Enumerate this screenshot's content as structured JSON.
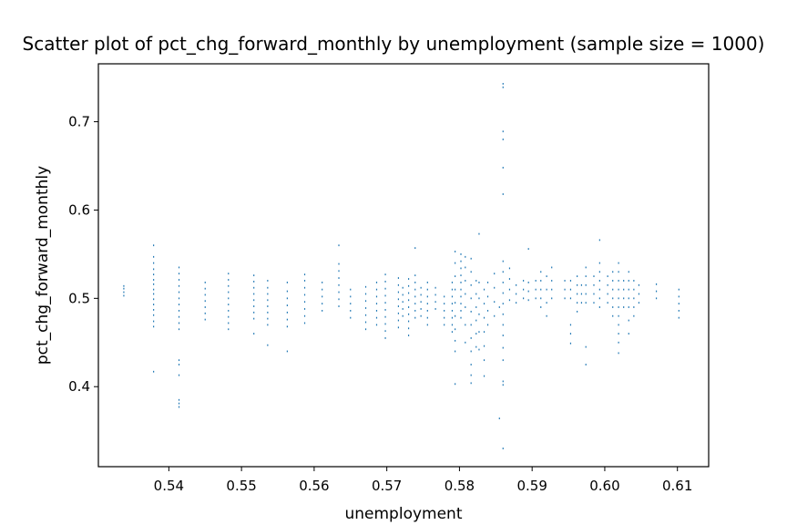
{
  "chart_data": {
    "type": "scatter",
    "title": "Scatter plot of pct_chg_forward_monthly by unemployment (sample size = 1000)",
    "xlabel": "unemployment",
    "ylabel": "pct_chg_forward_monthly",
    "xlim": [
      0.5303,
      0.6143
    ],
    "ylim": [
      0.3094,
      0.7656
    ],
    "x_ticks": [
      0.54,
      0.55,
      0.56,
      0.57,
      0.58,
      0.59,
      0.6,
      0.61
    ],
    "x_tick_labels": [
      "0.54",
      "0.55",
      "0.56",
      "0.57",
      "0.58",
      "0.59",
      "0.60",
      "0.61"
    ],
    "y_ticks": [
      0.4,
      0.5,
      0.6,
      0.7
    ],
    "y_tick_labels": [
      "0.4",
      "0.5",
      "0.6",
      "0.7"
    ],
    "grid": false,
    "marker_color": "#1f77b4",
    "points": [
      [
        0.5338,
        0.503
      ],
      [
        0.5338,
        0.507
      ],
      [
        0.5338,
        0.511
      ],
      [
        0.5338,
        0.514
      ],
      [
        0.5379,
        0.417
      ],
      [
        0.5379,
        0.468
      ],
      [
        0.5379,
        0.474
      ],
      [
        0.5379,
        0.481
      ],
      [
        0.5379,
        0.487
      ],
      [
        0.5379,
        0.493
      ],
      [
        0.5379,
        0.499
      ],
      [
        0.5379,
        0.505
      ],
      [
        0.5379,
        0.51
      ],
      [
        0.5379,
        0.516
      ],
      [
        0.5379,
        0.521
      ],
      [
        0.5379,
        0.527
      ],
      [
        0.5379,
        0.533
      ],
      [
        0.5379,
        0.54
      ],
      [
        0.5379,
        0.547
      ],
      [
        0.5379,
        0.56
      ],
      [
        0.5414,
        0.377
      ],
      [
        0.5414,
        0.381
      ],
      [
        0.5414,
        0.385
      ],
      [
        0.5414,
        0.413
      ],
      [
        0.5414,
        0.425
      ],
      [
        0.5414,
        0.43
      ],
      [
        0.5414,
        0.465
      ],
      [
        0.5414,
        0.472
      ],
      [
        0.5414,
        0.479
      ],
      [
        0.5414,
        0.486
      ],
      [
        0.5414,
        0.493
      ],
      [
        0.5414,
        0.5
      ],
      [
        0.5414,
        0.507
      ],
      [
        0.5414,
        0.514
      ],
      [
        0.5414,
        0.521
      ],
      [
        0.5414,
        0.528
      ],
      [
        0.5414,
        0.535
      ],
      [
        0.545,
        0.476
      ],
      [
        0.545,
        0.483
      ],
      [
        0.545,
        0.49
      ],
      [
        0.545,
        0.497
      ],
      [
        0.545,
        0.504
      ],
      [
        0.545,
        0.511
      ],
      [
        0.545,
        0.518
      ],
      [
        0.5482,
        0.465
      ],
      [
        0.5482,
        0.472
      ],
      [
        0.5482,
        0.479
      ],
      [
        0.5482,
        0.486
      ],
      [
        0.5482,
        0.493
      ],
      [
        0.5482,
        0.5
      ],
      [
        0.5482,
        0.507
      ],
      [
        0.5482,
        0.514
      ],
      [
        0.5482,
        0.521
      ],
      [
        0.5482,
        0.528
      ],
      [
        0.5517,
        0.46
      ],
      [
        0.5517,
        0.477
      ],
      [
        0.5517,
        0.484
      ],
      [
        0.5517,
        0.491
      ],
      [
        0.5517,
        0.498
      ],
      [
        0.5517,
        0.505
      ],
      [
        0.5517,
        0.512
      ],
      [
        0.5517,
        0.519
      ],
      [
        0.5517,
        0.526
      ],
      [
        0.5536,
        0.447
      ],
      [
        0.5536,
        0.47
      ],
      [
        0.5536,
        0.477
      ],
      [
        0.5536,
        0.484
      ],
      [
        0.5536,
        0.491
      ],
      [
        0.5536,
        0.498
      ],
      [
        0.5536,
        0.505
      ],
      [
        0.5536,
        0.512
      ],
      [
        0.5536,
        0.52
      ],
      [
        0.5563,
        0.44
      ],
      [
        0.5563,
        0.468
      ],
      [
        0.5563,
        0.476
      ],
      [
        0.5563,
        0.484
      ],
      [
        0.5563,
        0.492
      ],
      [
        0.5563,
        0.5
      ],
      [
        0.5563,
        0.508
      ],
      [
        0.5563,
        0.518
      ],
      [
        0.5587,
        0.472
      ],
      [
        0.5587,
        0.48
      ],
      [
        0.5587,
        0.488
      ],
      [
        0.5587,
        0.496
      ],
      [
        0.5587,
        0.504
      ],
      [
        0.5587,
        0.512
      ],
      [
        0.5587,
        0.52
      ],
      [
        0.5587,
        0.527
      ],
      [
        0.5611,
        0.486
      ],
      [
        0.5611,
        0.494
      ],
      [
        0.5611,
        0.502
      ],
      [
        0.5611,
        0.51
      ],
      [
        0.5611,
        0.518
      ],
      [
        0.5634,
        0.491
      ],
      [
        0.5634,
        0.499
      ],
      [
        0.5634,
        0.507
      ],
      [
        0.5634,
        0.515
      ],
      [
        0.5634,
        0.523
      ],
      [
        0.5634,
        0.531
      ],
      [
        0.5634,
        0.539
      ],
      [
        0.5634,
        0.56
      ],
      [
        0.565,
        0.478
      ],
      [
        0.565,
        0.486
      ],
      [
        0.565,
        0.494
      ],
      [
        0.565,
        0.502
      ],
      [
        0.565,
        0.51
      ],
      [
        0.5671,
        0.465
      ],
      [
        0.5671,
        0.473
      ],
      [
        0.5671,
        0.481
      ],
      [
        0.5671,
        0.489
      ],
      [
        0.5671,
        0.497
      ],
      [
        0.5671,
        0.505
      ],
      [
        0.5671,
        0.513
      ],
      [
        0.5686,
        0.47
      ],
      [
        0.5686,
        0.478
      ],
      [
        0.5686,
        0.486
      ],
      [
        0.5686,
        0.494
      ],
      [
        0.5686,
        0.502
      ],
      [
        0.5686,
        0.51
      ],
      [
        0.5686,
        0.518
      ],
      [
        0.5698,
        0.455
      ],
      [
        0.5698,
        0.463
      ],
      [
        0.5698,
        0.471
      ],
      [
        0.5698,
        0.479
      ],
      [
        0.5698,
        0.487
      ],
      [
        0.5698,
        0.495
      ],
      [
        0.5698,
        0.503
      ],
      [
        0.5698,
        0.511
      ],
      [
        0.5698,
        0.519
      ],
      [
        0.5698,
        0.527
      ],
      [
        0.5716,
        0.467
      ],
      [
        0.5716,
        0.475
      ],
      [
        0.5716,
        0.483
      ],
      [
        0.5716,
        0.491
      ],
      [
        0.5716,
        0.499
      ],
      [
        0.5716,
        0.507
      ],
      [
        0.5716,
        0.515
      ],
      [
        0.5716,
        0.523
      ],
      [
        0.5722,
        0.48
      ],
      [
        0.5722,
        0.488
      ],
      [
        0.5722,
        0.496
      ],
      [
        0.5722,
        0.504
      ],
      [
        0.5722,
        0.512
      ],
      [
        0.573,
        0.458
      ],
      [
        0.573,
        0.466
      ],
      [
        0.573,
        0.474
      ],
      [
        0.573,
        0.482
      ],
      [
        0.573,
        0.49
      ],
      [
        0.573,
        0.498
      ],
      [
        0.573,
        0.506
      ],
      [
        0.573,
        0.514
      ],
      [
        0.573,
        0.522
      ],
      [
        0.5739,
        0.478
      ],
      [
        0.5739,
        0.486
      ],
      [
        0.5739,
        0.494
      ],
      [
        0.5739,
        0.502
      ],
      [
        0.5739,
        0.51
      ],
      [
        0.5739,
        0.518
      ],
      [
        0.5739,
        0.526
      ],
      [
        0.5739,
        0.557
      ],
      [
        0.5747,
        0.48
      ],
      [
        0.5747,
        0.488
      ],
      [
        0.5747,
        0.496
      ],
      [
        0.5747,
        0.504
      ],
      [
        0.5747,
        0.512
      ],
      [
        0.5756,
        0.47
      ],
      [
        0.5756,
        0.478
      ],
      [
        0.5756,
        0.486
      ],
      [
        0.5756,
        0.494
      ],
      [
        0.5756,
        0.502
      ],
      [
        0.5756,
        0.51
      ],
      [
        0.5756,
        0.518
      ],
      [
        0.5767,
        0.488
      ],
      [
        0.5767,
        0.496
      ],
      [
        0.5767,
        0.504
      ],
      [
        0.5767,
        0.512
      ],
      [
        0.5779,
        0.47
      ],
      [
        0.5779,
        0.478
      ],
      [
        0.5779,
        0.486
      ],
      [
        0.5779,
        0.494
      ],
      [
        0.5779,
        0.502
      ],
      [
        0.579,
        0.462
      ],
      [
        0.579,
        0.47
      ],
      [
        0.579,
        0.478
      ],
      [
        0.579,
        0.486
      ],
      [
        0.579,
        0.494
      ],
      [
        0.579,
        0.502
      ],
      [
        0.579,
        0.51
      ],
      [
        0.579,
        0.518
      ],
      [
        0.5794,
        0.403
      ],
      [
        0.5794,
        0.44
      ],
      [
        0.5794,
        0.452
      ],
      [
        0.5794,
        0.465
      ],
      [
        0.5794,
        0.48
      ],
      [
        0.5794,
        0.495
      ],
      [
        0.5794,
        0.51
      ],
      [
        0.5794,
        0.525
      ],
      [
        0.5794,
        0.54
      ],
      [
        0.5794,
        0.553
      ],
      [
        0.5802,
        0.478
      ],
      [
        0.5802,
        0.486
      ],
      [
        0.5802,
        0.494
      ],
      [
        0.5802,
        0.502
      ],
      [
        0.5802,
        0.51
      ],
      [
        0.5802,
        0.518
      ],
      [
        0.5802,
        0.526
      ],
      [
        0.5802,
        0.534
      ],
      [
        0.5802,
        0.542
      ],
      [
        0.5802,
        0.55
      ],
      [
        0.5808,
        0.45
      ],
      [
        0.5808,
        0.47
      ],
      [
        0.5808,
        0.49
      ],
      [
        0.5808,
        0.505
      ],
      [
        0.5808,
        0.52
      ],
      [
        0.5808,
        0.535
      ],
      [
        0.5808,
        0.547
      ],
      [
        0.5816,
        0.404
      ],
      [
        0.5816,
        0.413
      ],
      [
        0.5816,
        0.425
      ],
      [
        0.5816,
        0.44
      ],
      [
        0.5816,
        0.455
      ],
      [
        0.5816,
        0.47
      ],
      [
        0.5816,
        0.485
      ],
      [
        0.5816,
        0.5
      ],
      [
        0.5816,
        0.515
      ],
      [
        0.5816,
        0.53
      ],
      [
        0.5816,
        0.545
      ],
      [
        0.5823,
        0.445
      ],
      [
        0.5823,
        0.46
      ],
      [
        0.5823,
        0.475
      ],
      [
        0.5823,
        0.49
      ],
      [
        0.5823,
        0.505
      ],
      [
        0.5823,
        0.52
      ],
      [
        0.5827,
        0.442
      ],
      [
        0.5827,
        0.462
      ],
      [
        0.5827,
        0.482
      ],
      [
        0.5827,
        0.5
      ],
      [
        0.5827,
        0.518
      ],
      [
        0.5827,
        0.573
      ],
      [
        0.5834,
        0.412
      ],
      [
        0.5834,
        0.43
      ],
      [
        0.5834,
        0.446
      ],
      [
        0.5834,
        0.462
      ],
      [
        0.5834,
        0.478
      ],
      [
        0.5834,
        0.494
      ],
      [
        0.5834,
        0.51
      ],
      [
        0.5839,
        0.47
      ],
      [
        0.5839,
        0.486
      ],
      [
        0.5839,
        0.502
      ],
      [
        0.5839,
        0.518
      ],
      [
        0.5848,
        0.48
      ],
      [
        0.5848,
        0.496
      ],
      [
        0.5848,
        0.512
      ],
      [
        0.5848,
        0.528
      ],
      [
        0.5855,
        0.364
      ],
      [
        0.5855,
        0.49
      ],
      [
        0.586,
        0.402
      ],
      [
        0.586,
        0.406
      ],
      [
        0.586,
        0.43
      ],
      [
        0.586,
        0.444
      ],
      [
        0.586,
        0.458
      ],
      [
        0.586,
        0.47
      ],
      [
        0.586,
        0.482
      ],
      [
        0.586,
        0.494
      ],
      [
        0.586,
        0.506
      ],
      [
        0.586,
        0.518
      ],
      [
        0.586,
        0.53
      ],
      [
        0.586,
        0.542
      ],
      [
        0.586,
        0.618
      ],
      [
        0.586,
        0.648
      ],
      [
        0.586,
        0.68
      ],
      [
        0.586,
        0.689
      ],
      [
        0.586,
        0.739
      ],
      [
        0.586,
        0.743
      ],
      [
        0.586,
        0.33
      ],
      [
        0.5869,
        0.498
      ],
      [
        0.5869,
        0.51
      ],
      [
        0.5869,
        0.522
      ],
      [
        0.5869,
        0.534
      ],
      [
        0.5878,
        0.495
      ],
      [
        0.5878,
        0.505
      ],
      [
        0.5878,
        0.515
      ],
      [
        0.5888,
        0.5
      ],
      [
        0.5888,
        0.51
      ],
      [
        0.5888,
        0.52
      ],
      [
        0.5895,
        0.498
      ],
      [
        0.5895,
        0.508
      ],
      [
        0.5895,
        0.518
      ],
      [
        0.5895,
        0.556
      ],
      [
        0.5905,
        0.5
      ],
      [
        0.5905,
        0.51
      ],
      [
        0.5905,
        0.52
      ],
      [
        0.5912,
        0.49
      ],
      [
        0.5912,
        0.5
      ],
      [
        0.5912,
        0.51
      ],
      [
        0.5912,
        0.52
      ],
      [
        0.5912,
        0.53
      ],
      [
        0.592,
        0.48
      ],
      [
        0.592,
        0.495
      ],
      [
        0.592,
        0.51
      ],
      [
        0.592,
        0.525
      ],
      [
        0.5927,
        0.5
      ],
      [
        0.5927,
        0.51
      ],
      [
        0.5927,
        0.52
      ],
      [
        0.5927,
        0.535
      ],
      [
        0.5945,
        0.5
      ],
      [
        0.5945,
        0.51
      ],
      [
        0.5945,
        0.52
      ],
      [
        0.5953,
        0.449
      ],
      [
        0.5953,
        0.46
      ],
      [
        0.5953,
        0.47
      ],
      [
        0.5953,
        0.5
      ],
      [
        0.5953,
        0.51
      ],
      [
        0.5953,
        0.52
      ],
      [
        0.5962,
        0.485
      ],
      [
        0.5962,
        0.495
      ],
      [
        0.5962,
        0.505
      ],
      [
        0.5962,
        0.515
      ],
      [
        0.5962,
        0.525
      ],
      [
        0.5968,
        0.495
      ],
      [
        0.5968,
        0.505
      ],
      [
        0.5968,
        0.515
      ],
      [
        0.5974,
        0.425
      ],
      [
        0.5974,
        0.445
      ],
      [
        0.5974,
        0.495
      ],
      [
        0.5974,
        0.505
      ],
      [
        0.5974,
        0.515
      ],
      [
        0.5974,
        0.525
      ],
      [
        0.5974,
        0.535
      ],
      [
        0.5985,
        0.495
      ],
      [
        0.5985,
        0.505
      ],
      [
        0.5985,
        0.515
      ],
      [
        0.5985,
        0.525
      ],
      [
        0.5993,
        0.49
      ],
      [
        0.5993,
        0.5
      ],
      [
        0.5993,
        0.51
      ],
      [
        0.5993,
        0.52
      ],
      [
        0.5993,
        0.53
      ],
      [
        0.5993,
        0.54
      ],
      [
        0.5993,
        0.566
      ],
      [
        0.6004,
        0.495
      ],
      [
        0.6004,
        0.505
      ],
      [
        0.6004,
        0.515
      ],
      [
        0.6004,
        0.525
      ],
      [
        0.6011,
        0.48
      ],
      [
        0.6011,
        0.49
      ],
      [
        0.6011,
        0.5
      ],
      [
        0.6011,
        0.51
      ],
      [
        0.6011,
        0.52
      ],
      [
        0.6011,
        0.53
      ],
      [
        0.6019,
        0.438
      ],
      [
        0.6019,
        0.45
      ],
      [
        0.6019,
        0.46
      ],
      [
        0.6019,
        0.47
      ],
      [
        0.6019,
        0.48
      ],
      [
        0.6019,
        0.49
      ],
      [
        0.6019,
        0.5
      ],
      [
        0.6019,
        0.51
      ],
      [
        0.6019,
        0.52
      ],
      [
        0.6019,
        0.53
      ],
      [
        0.6019,
        0.54
      ],
      [
        0.6026,
        0.49
      ],
      [
        0.6026,
        0.5
      ],
      [
        0.6026,
        0.51
      ],
      [
        0.6026,
        0.52
      ],
      [
        0.6033,
        0.46
      ],
      [
        0.6033,
        0.475
      ],
      [
        0.6033,
        0.49
      ],
      [
        0.6033,
        0.5
      ],
      [
        0.6033,
        0.51
      ],
      [
        0.6033,
        0.52
      ],
      [
        0.6033,
        0.53
      ],
      [
        0.604,
        0.48
      ],
      [
        0.604,
        0.49
      ],
      [
        0.604,
        0.5
      ],
      [
        0.604,
        0.51
      ],
      [
        0.604,
        0.52
      ],
      [
        0.6047,
        0.495
      ],
      [
        0.6047,
        0.505
      ],
      [
        0.6047,
        0.515
      ],
      [
        0.6071,
        0.5
      ],
      [
        0.6071,
        0.508
      ],
      [
        0.6071,
        0.516
      ],
      [
        0.6102,
        0.478
      ],
      [
        0.6102,
        0.486
      ],
      [
        0.6102,
        0.494
      ],
      [
        0.6102,
        0.502
      ],
      [
        0.6102,
        0.51
      ]
    ]
  }
}
